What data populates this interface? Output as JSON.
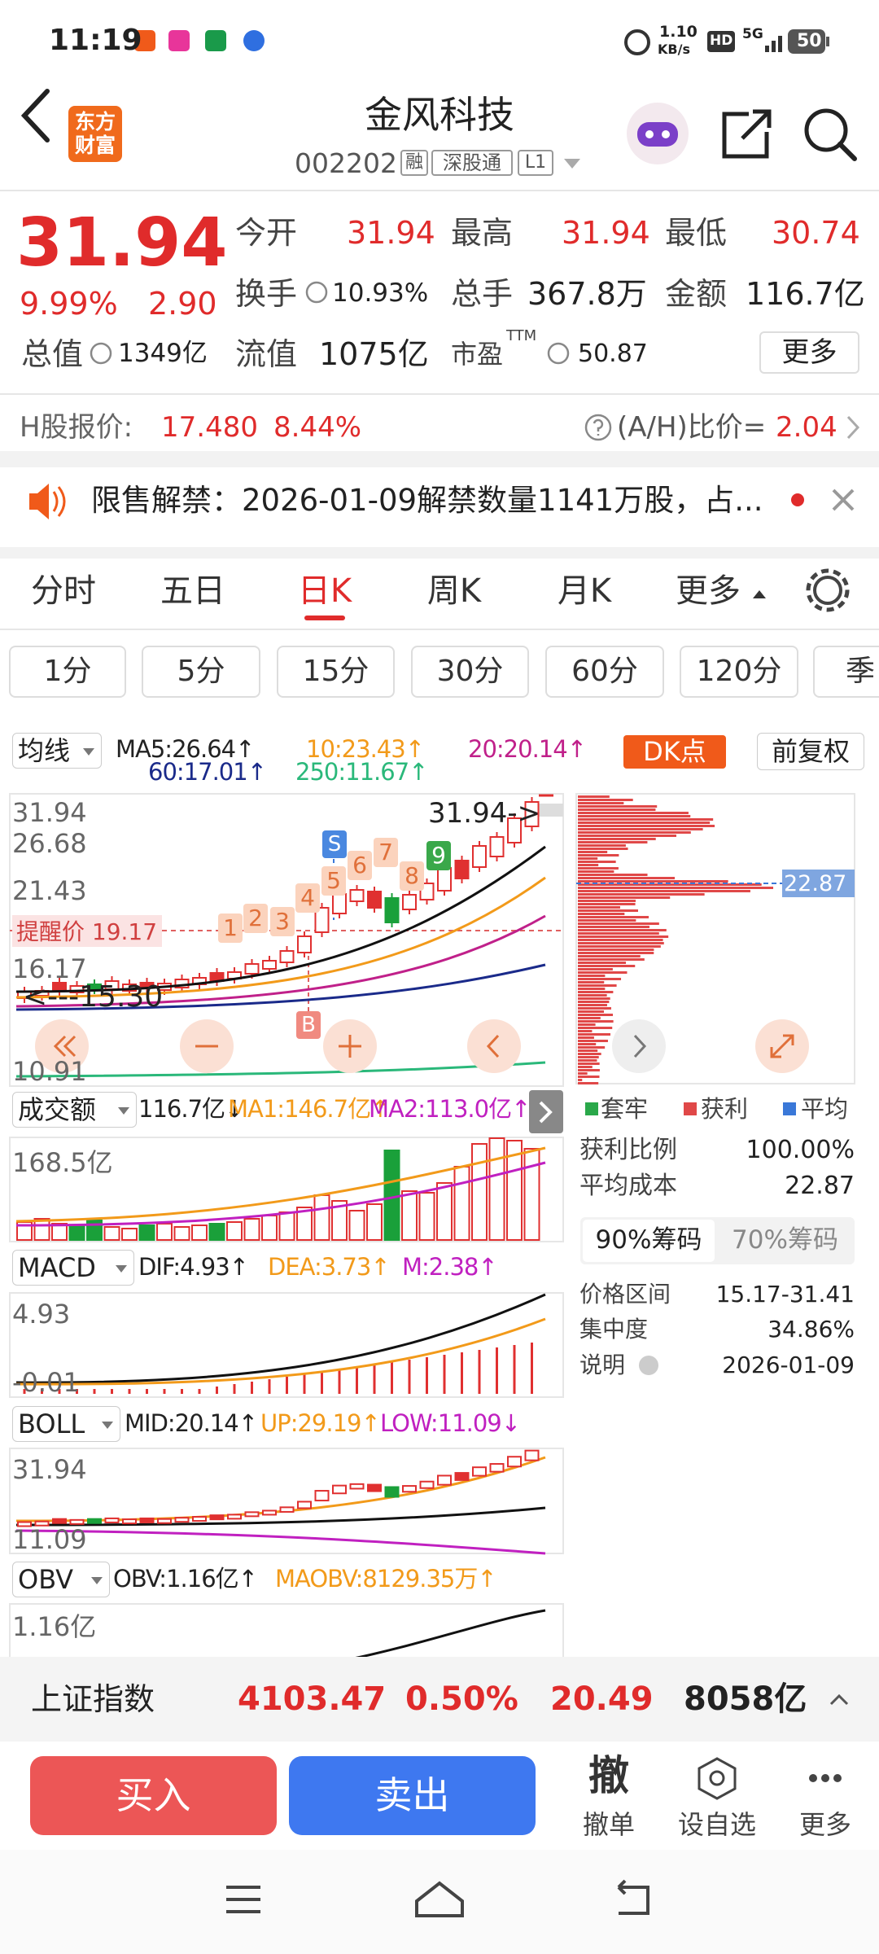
{
  "status_bar": {
    "time": "11:19",
    "net_speed": "1.10",
    "net_unit": "KB/s",
    "hd": "HD",
    "signal": "5G",
    "battery": "50"
  },
  "header": {
    "logo_line1": "东方",
    "logo_line2": "财富",
    "title": "金风科技",
    "code": "002202",
    "badges": [
      "融",
      "深股通",
      "L1"
    ]
  },
  "quote": {
    "price": "31.94",
    "change_pct": "9.99%",
    "change": "2.90",
    "row1": [
      {
        "label": "今开",
        "value": "31.94"
      },
      {
        "label": "最高",
        "value": "31.94"
      },
      {
        "label": "最低",
        "value": "30.74"
      }
    ],
    "row2": [
      {
        "label": "换手",
        "value": "10.93%"
      },
      {
        "label": "总手",
        "value": "367.8万"
      },
      {
        "label": "金额",
        "value": "116.7亿"
      }
    ],
    "row3": [
      {
        "label": "总值",
        "value": "1349亿"
      },
      {
        "label": "流值",
        "value": "1075亿"
      },
      {
        "label": "市盈",
        "sup": "TTM",
        "value": "50.87"
      }
    ],
    "more": "更多"
  },
  "h_share": {
    "label": "H股报价:",
    "price": "17.480",
    "pct": "8.44%",
    "ratio_label": "(A/H)比价=",
    "ratio": "2.04"
  },
  "notice": {
    "text": "限售解禁：2026-01-09解禁数量1141万股，占..."
  },
  "tabs": [
    "分时",
    "五日",
    "日K",
    "周K",
    "月K",
    "更多"
  ],
  "periods": [
    "1分",
    "5分",
    "15分",
    "30分",
    "60分",
    "120分",
    "季"
  ],
  "ma": {
    "selector": "均线",
    "row1": [
      "MA5:26.64↑",
      "10:23.43↑",
      "20:20.14↑"
    ],
    "row2": [
      "60:17.01↑",
      "250:11.67↑"
    ],
    "dk": "DK点",
    "adjust": "前复权"
  },
  "main_chart": {
    "y_labels": [
      "31.94",
      "26.68",
      "21.43",
      "16.17",
      "10.91"
    ],
    "remind": "提醒价 19.17",
    "current": "31.94->",
    "low": "<---15.30",
    "signals": [
      "1",
      "2",
      "3",
      "4",
      "5",
      "6",
      "7",
      "8",
      "9"
    ],
    "sell_mark": "S",
    "buy_mark": "B",
    "chip_price": "22.87"
  },
  "chips": {
    "legend": [
      "套牢",
      "获利",
      "平均"
    ],
    "rows": [
      {
        "label": "获利比例",
        "value": "100.00%"
      },
      {
        "label": "平均成本",
        "value": "22.87"
      }
    ],
    "tabs": [
      "90%筹码",
      "70%筹码"
    ],
    "rows2": [
      {
        "label": "价格区间",
        "value": "15.17-31.41"
      },
      {
        "label": "集中度",
        "value": "34.86%"
      },
      {
        "label": "说明",
        "value": "2026-01-09"
      }
    ]
  },
  "volume": {
    "selector": "成交额",
    "items": [
      "116.7亿↓",
      "MA1:146.7亿↑",
      "MA2:113.0亿↑"
    ],
    "y_label": "168.5亿"
  },
  "macd": {
    "selector": "MACD",
    "items": [
      "DIF:4.93↑",
      "DEA:3.73↑",
      "M:2.38↑"
    ],
    "y_labels": [
      "4.93",
      "-0.01"
    ]
  },
  "boll": {
    "selector": "BOLL",
    "items": [
      "MID:20.14↑",
      "UP:29.19↑",
      "LOW:11.09↓"
    ],
    "y_labels": [
      "31.94",
      "11.09"
    ]
  },
  "obv": {
    "selector": "OBV",
    "items": [
      "OBV:1.16亿↑",
      "MAOBV:8129.35万↑"
    ],
    "y_label": "1.16亿"
  },
  "index_bar": {
    "name": "上证指数",
    "price": "4103.47",
    "pct": "0.50%",
    "change": "20.49",
    "amount": "8058亿"
  },
  "actions": {
    "buy": "买入",
    "sell": "卖出",
    "cancel_icon": "撤",
    "cancel": "撤单",
    "watch": "设自选",
    "more": "更多"
  }
}
